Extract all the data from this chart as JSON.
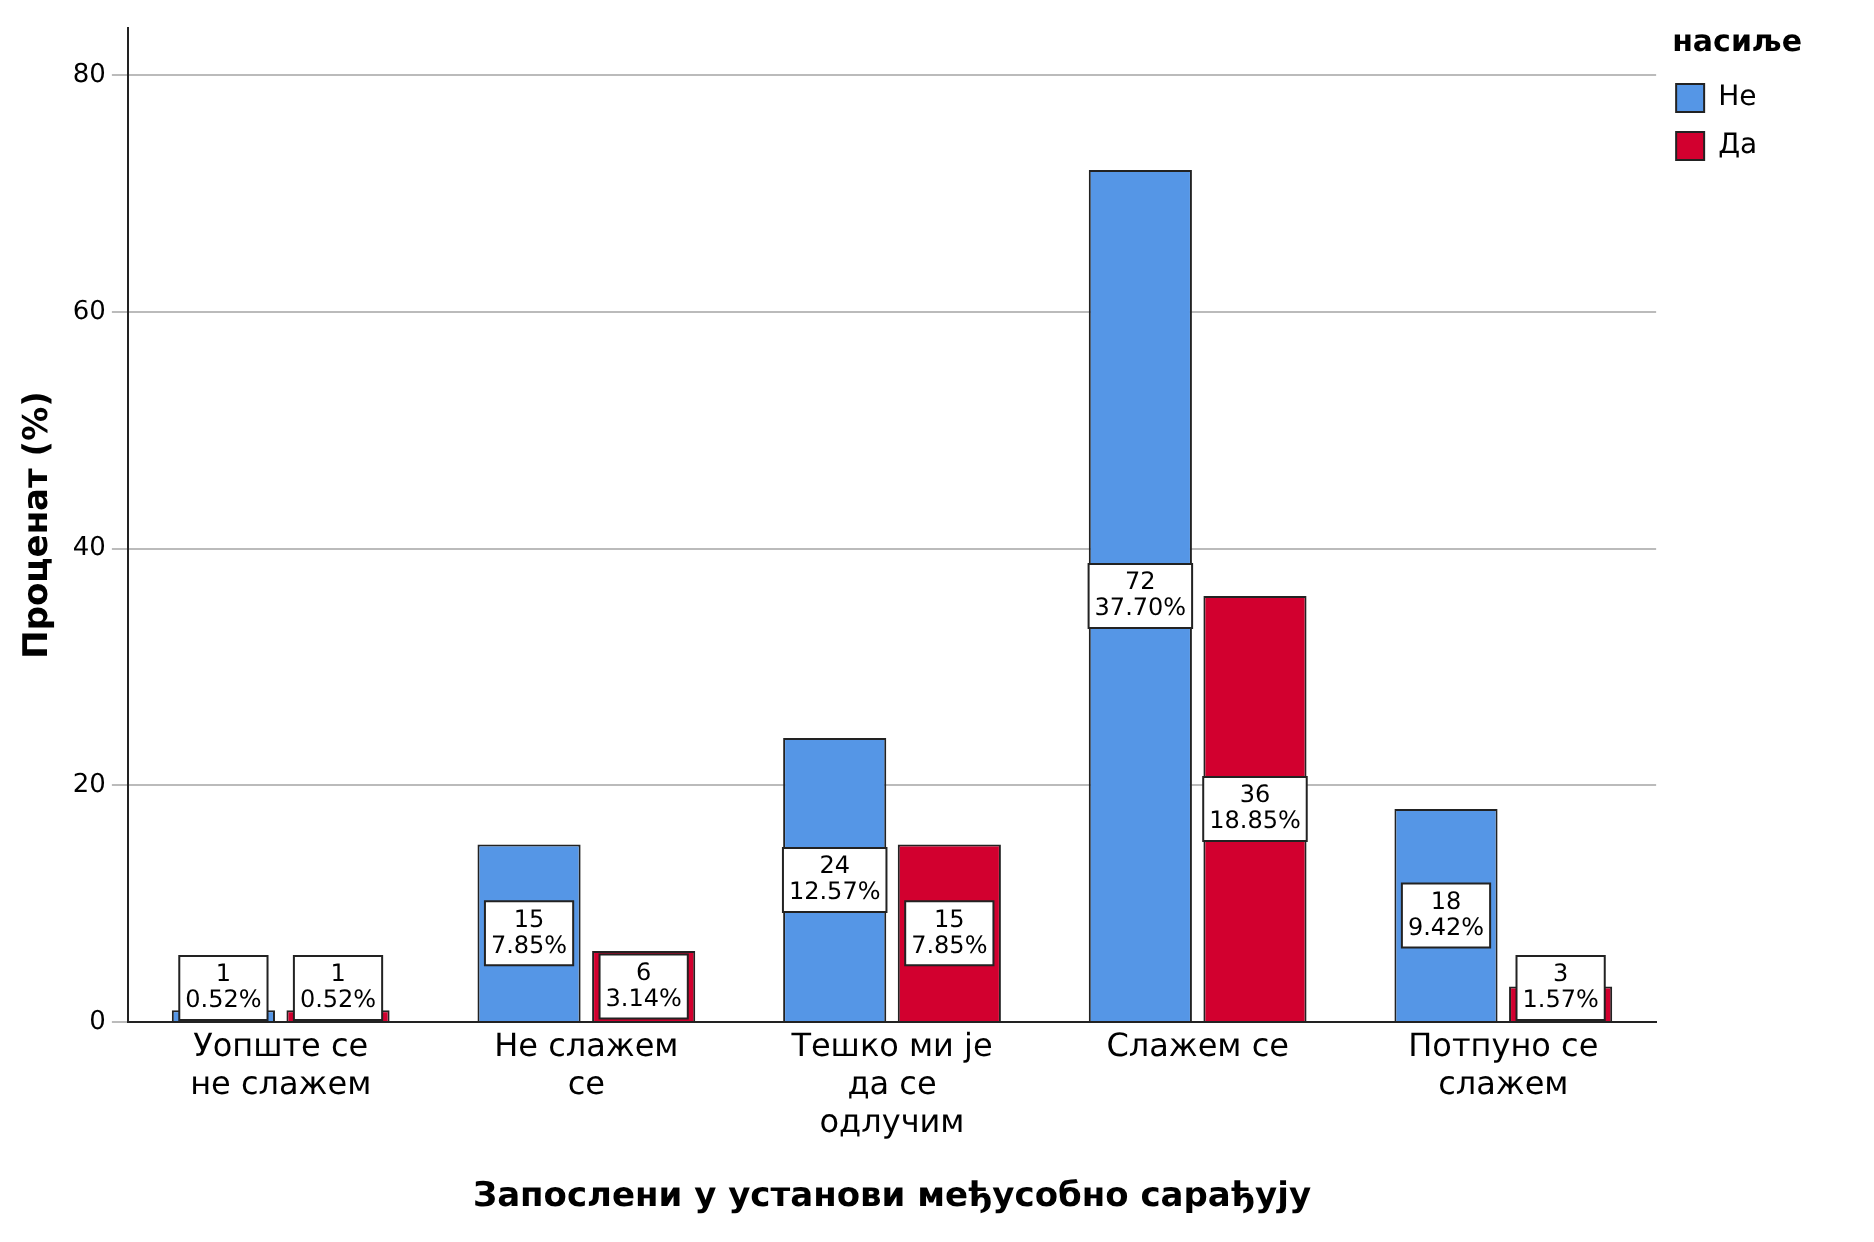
{
  "chart_data": {
    "type": "bar",
    "xlabel": "Запослени у установи међусобно сарађују",
    "ylabel": "Проценат (%)",
    "legend_title": "насиље",
    "categories": [
      "Уопште се не слажем",
      "Не слажем се",
      "Тешко ми је да се одлучим",
      "Слажем се",
      "Потпуно се слажем"
    ],
    "series": [
      {
        "name": "Не",
        "color": "#5596e6",
        "values": [
          1,
          15,
          24,
          72,
          18
        ],
        "value_labels": [
          "1\n0.52%",
          "15\n7.85%",
          "24\n12.57%",
          "72\n37.70%",
          "18\n9.42%"
        ]
      },
      {
        "name": "Да",
        "color": "#d2002f",
        "values": [
          1,
          6,
          15,
          36,
          3
        ],
        "value_labels": [
          "1\n0.52%",
          "6\n3.14%",
          "15\n7.85%",
          "36\n18.85%",
          "3\n1.57%"
        ]
      }
    ],
    "ylim": [
      0,
      84
    ],
    "yticks": [
      0,
      20,
      40,
      60,
      80
    ],
    "grid": "y",
    "legend": "top right"
  }
}
